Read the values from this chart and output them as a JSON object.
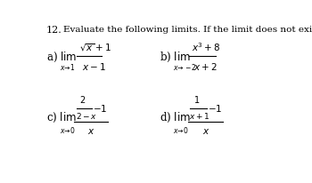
{
  "title_number": "12.",
  "title_text": "Evaluate the following limits. If the limit does not exist, write DNE.",
  "bg_color": "#ffffff",
  "text_color": "#000000"
}
